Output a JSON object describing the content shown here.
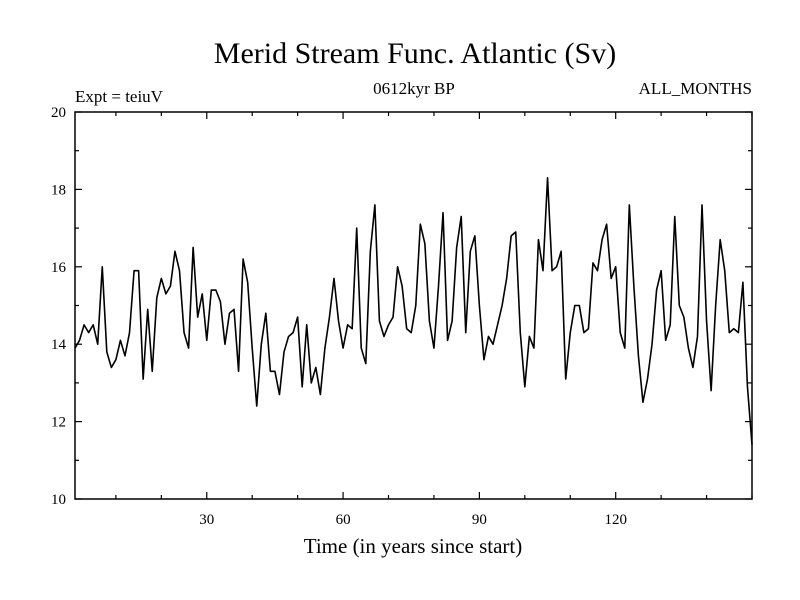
{
  "chart_data": {
    "type": "line",
    "title": "Merid Stream Func. Atlantic (Sv)",
    "subtitle_left": "Expt = teiuV",
    "subtitle_center": "0612kyr BP",
    "subtitle_right": "ALL_MONTHS",
    "xlabel": "Time (in years since start)",
    "ylabel": "",
    "xlim": [
      1,
      150
    ],
    "ylim": [
      10,
      20
    ],
    "x_ticks": [
      30,
      60,
      90,
      120
    ],
    "x_minor_step": 10,
    "y_ticks": [
      10,
      12,
      14,
      16,
      18,
      20
    ],
    "y_minor_step": 1,
    "grid": false,
    "series": [
      {
        "name": "Merid Stream Func. Atlantic",
        "color": "#000000",
        "x_start": 1,
        "x_step": 1,
        "values": [
          13.9,
          14.1,
          14.5,
          14.3,
          14.5,
          14.0,
          16.0,
          13.8,
          13.4,
          13.6,
          14.1,
          13.7,
          14.3,
          15.9,
          15.9,
          13.1,
          14.9,
          13.3,
          15.2,
          15.7,
          15.3,
          15.5,
          16.4,
          15.9,
          14.3,
          13.9,
          16.5,
          14.7,
          15.3,
          14.1,
          15.4,
          15.4,
          15.1,
          14.0,
          14.8,
          14.9,
          13.3,
          16.2,
          15.6,
          13.9,
          12.4,
          14.0,
          14.8,
          13.3,
          13.3,
          12.7,
          13.8,
          14.2,
          14.3,
          14.7,
          12.9,
          14.5,
          13.0,
          13.4,
          12.7,
          13.9,
          14.7,
          15.7,
          14.6,
          13.9,
          14.5,
          14.4,
          17.0,
          13.9,
          13.5,
          16.4,
          17.6,
          14.6,
          14.2,
          14.5,
          14.7,
          16.0,
          15.5,
          14.4,
          14.3,
          15.0,
          17.1,
          16.6,
          14.6,
          13.9,
          15.5,
          17.4,
          14.1,
          14.6,
          16.5,
          17.3,
          14.3,
          16.4,
          16.8,
          15.0,
          13.6,
          14.2,
          14.0,
          14.5,
          15.0,
          15.7,
          16.8,
          16.9,
          14.3,
          12.9,
          14.2,
          13.9,
          16.7,
          15.9,
          18.3,
          15.9,
          16.0,
          16.4,
          13.1,
          14.3,
          15.0,
          15.0,
          14.3,
          14.4,
          16.1,
          15.9,
          16.7,
          17.1,
          15.7,
          16.0,
          14.3,
          13.9,
          17.6,
          15.5,
          13.7,
          12.5,
          13.1,
          14.0,
          15.4,
          15.9,
          14.1,
          14.5,
          17.3,
          15.0,
          14.7,
          13.9,
          13.4,
          14.2,
          17.6,
          14.6,
          12.8,
          15.0,
          16.7,
          15.9,
          14.3,
          14.4,
          14.3,
          15.6,
          12.9,
          11.4
        ]
      }
    ]
  }
}
